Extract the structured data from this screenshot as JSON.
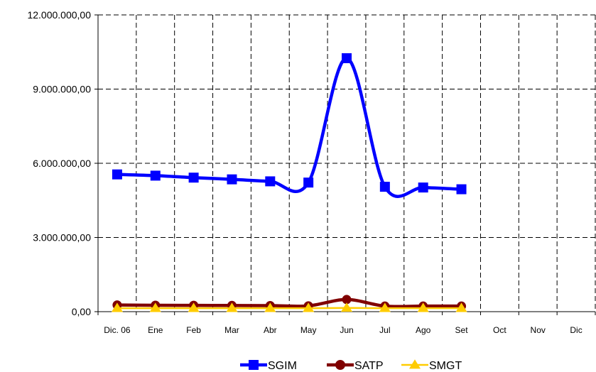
{
  "chart_data": {
    "type": "line",
    "title": "",
    "xlabel": "",
    "ylabel": "",
    "categories": [
      "Dic. 06",
      "Ene",
      "Feb",
      "Mar",
      "Abr",
      "May",
      "Jun",
      "Jul",
      "Ago",
      "Set",
      "Oct",
      "Nov",
      "Dic"
    ],
    "ylim": [
      0,
      12000000
    ],
    "y_ticks": [
      {
        "value": 0,
        "label": "0,00"
      },
      {
        "value": 3000000,
        "label": "3.000.000,00"
      },
      {
        "value": 6000000,
        "label": "6.000.000,00"
      },
      {
        "value": 9000000,
        "label": "9.000.000,00"
      },
      {
        "value": 12000000,
        "label": "12.000.000,00"
      }
    ],
    "grid": true,
    "smooth": true,
    "legend_position": "bottom",
    "series": [
      {
        "name": "SGIM",
        "color": "#0000ff",
        "marker": "square",
        "values": [
          5550000,
          5500000,
          5420000,
          5350000,
          5270000,
          5220000,
          10250000,
          5050000,
          5020000,
          4950000,
          null,
          null,
          null
        ]
      },
      {
        "name": "SATP",
        "color": "#800000",
        "marker": "circle",
        "values": [
          270000,
          260000,
          255000,
          250000,
          245000,
          235000,
          490000,
          225000,
          225000,
          225000,
          null,
          null,
          null
        ]
      },
      {
        "name": "SMGT",
        "color": "#ffcc00",
        "marker": "triangle",
        "values": [
          140000,
          140000,
          140000,
          140000,
          140000,
          140000,
          150000,
          140000,
          140000,
          140000,
          null,
          null,
          null
        ]
      }
    ]
  }
}
